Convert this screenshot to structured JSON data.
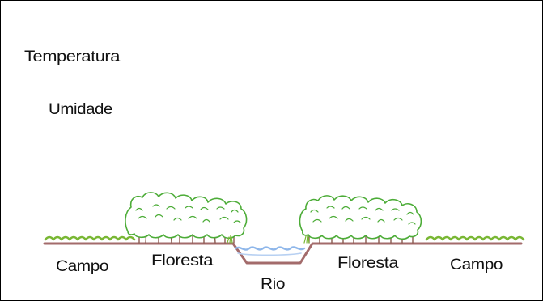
{
  "labels": {
    "temperature": "Temperatura",
    "humidity": "Umidade",
    "field_left": "Campo",
    "forest_left": "Floresta",
    "river": "Rio",
    "forest_right": "Floresta",
    "field_right": "Campo"
  },
  "colors": {
    "frame_border": "#000000",
    "curve_stroke": "#1a1a1a",
    "ground": "#a36b6b",
    "grass": "#79b734",
    "canopy_fill": "#ffffff",
    "canopy_stroke": "#4cac37",
    "trunk": "#8a5a50",
    "water": "#8fb7ea",
    "text": "#111111"
  }
}
